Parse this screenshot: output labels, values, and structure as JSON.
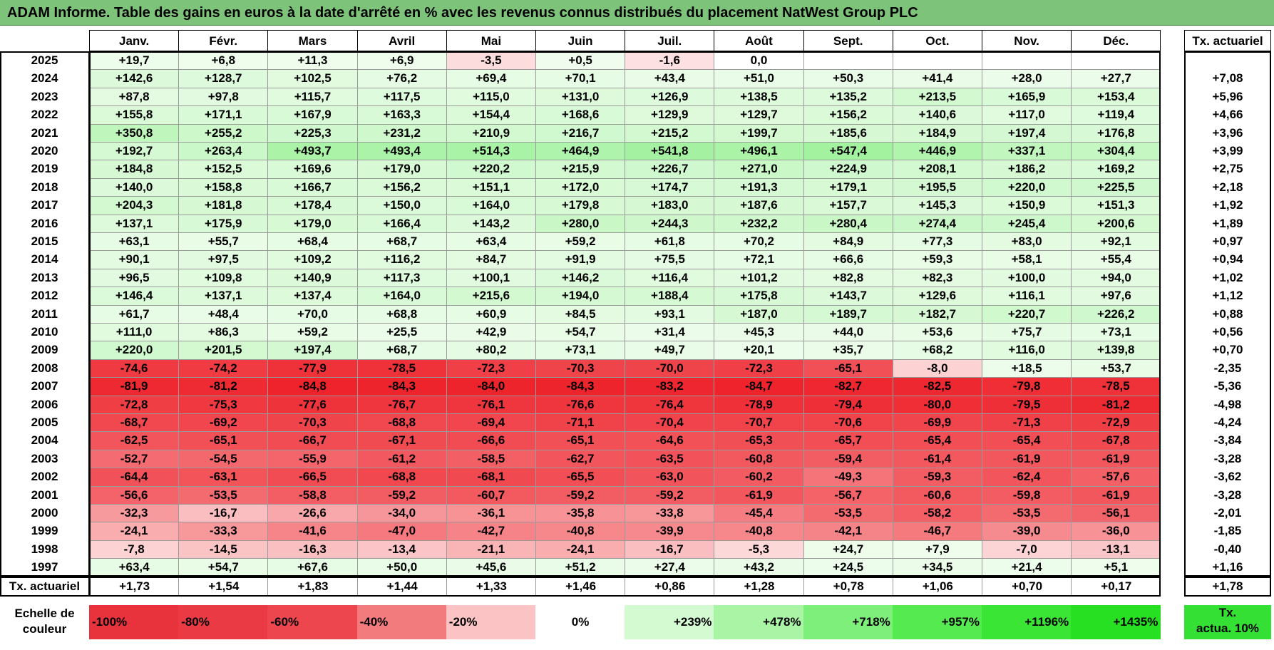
{
  "title": "ADAM Informe. Table des gains en euros à la date d'arrêté en % avec les revenus connus distribués du placement NatWest Group PLC",
  "months": [
    "Janv.",
    "Févr.",
    "Mars",
    "Avril",
    "Mai",
    "Juin",
    "Juil.",
    "Août",
    "Sept.",
    "Oct.",
    "Nov.",
    "Déc."
  ],
  "rate_header": "Tx. actuariel",
  "rows": [
    {
      "year": "2025",
      "values": [
        "+19,7",
        "+6,8",
        "+11,3",
        "+6,9",
        "-3,5",
        "+0,5",
        "-1,6",
        "0,0",
        "",
        "",
        "",
        ""
      ],
      "rate": ""
    },
    {
      "year": "2024",
      "values": [
        "+142,6",
        "+128,7",
        "+102,5",
        "+76,2",
        "+69,4",
        "+70,1",
        "+43,4",
        "+51,0",
        "+50,3",
        "+41,4",
        "+28,0",
        "+27,7"
      ],
      "rate": "+7,08"
    },
    {
      "year": "2023",
      "values": [
        "+87,8",
        "+97,8",
        "+115,7",
        "+117,5",
        "+115,0",
        "+131,0",
        "+126,9",
        "+138,5",
        "+135,2",
        "+213,5",
        "+165,9",
        "+153,4"
      ],
      "rate": "+5,96"
    },
    {
      "year": "2022",
      "values": [
        "+155,8",
        "+171,1",
        "+167,9",
        "+163,3",
        "+154,4",
        "+168,6",
        "+129,9",
        "+129,7",
        "+156,2",
        "+140,6",
        "+117,0",
        "+119,4"
      ],
      "rate": "+4,66"
    },
    {
      "year": "2021",
      "values": [
        "+350,8",
        "+255,2",
        "+225,3",
        "+231,2",
        "+210,9",
        "+216,7",
        "+215,2",
        "+199,7",
        "+185,6",
        "+184,9",
        "+197,4",
        "+176,8"
      ],
      "rate": "+3,96"
    },
    {
      "year": "2020",
      "values": [
        "+192,7",
        "+263,4",
        "+493,7",
        "+493,4",
        "+514,3",
        "+464,9",
        "+541,8",
        "+496,1",
        "+547,4",
        "+446,9",
        "+337,1",
        "+304,4"
      ],
      "rate": "+3,99"
    },
    {
      "year": "2019",
      "values": [
        "+184,8",
        "+152,5",
        "+169,6",
        "+179,0",
        "+220,2",
        "+215,9",
        "+226,7",
        "+271,0",
        "+224,9",
        "+208,1",
        "+186,2",
        "+169,2"
      ],
      "rate": "+2,75"
    },
    {
      "year": "2018",
      "values": [
        "+140,0",
        "+158,8",
        "+166,7",
        "+156,2",
        "+151,1",
        "+172,0",
        "+174,7",
        "+191,3",
        "+179,1",
        "+195,5",
        "+220,0",
        "+225,5"
      ],
      "rate": "+2,18"
    },
    {
      "year": "2017",
      "values": [
        "+204,3",
        "+181,8",
        "+178,4",
        "+150,0",
        "+164,0",
        "+179,8",
        "+183,0",
        "+187,6",
        "+157,7",
        "+145,3",
        "+150,9",
        "+151,3"
      ],
      "rate": "+1,92"
    },
    {
      "year": "2016",
      "values": [
        "+137,1",
        "+175,9",
        "+179,0",
        "+166,4",
        "+143,2",
        "+280,0",
        "+244,3",
        "+232,2",
        "+280,4",
        "+274,4",
        "+245,4",
        "+200,6"
      ],
      "rate": "+1,89"
    },
    {
      "year": "2015",
      "values": [
        "+63,1",
        "+55,7",
        "+68,4",
        "+68,7",
        "+63,4",
        "+59,2",
        "+61,8",
        "+70,2",
        "+84,9",
        "+77,3",
        "+83,0",
        "+92,1"
      ],
      "rate": "+0,97"
    },
    {
      "year": "2014",
      "values": [
        "+90,1",
        "+97,5",
        "+109,2",
        "+116,2",
        "+84,7",
        "+91,9",
        "+75,5",
        "+72,1",
        "+66,6",
        "+59,3",
        "+58,1",
        "+55,4"
      ],
      "rate": "+0,94"
    },
    {
      "year": "2013",
      "values": [
        "+96,5",
        "+109,8",
        "+140,9",
        "+117,3",
        "+100,1",
        "+146,2",
        "+116,4",
        "+101,2",
        "+82,8",
        "+82,3",
        "+100,0",
        "+94,0"
      ],
      "rate": "+1,02"
    },
    {
      "year": "2012",
      "values": [
        "+146,4",
        "+137,1",
        "+137,4",
        "+164,0",
        "+215,6",
        "+194,0",
        "+188,4",
        "+175,8",
        "+143,7",
        "+129,6",
        "+116,1",
        "+97,6"
      ],
      "rate": "+1,12"
    },
    {
      "year": "2011",
      "values": [
        "+61,7",
        "+48,4",
        "+70,0",
        "+68,8",
        "+60,9",
        "+84,5",
        "+93,1",
        "+187,0",
        "+189,7",
        "+182,7",
        "+220,7",
        "+226,2"
      ],
      "rate": "+0,88"
    },
    {
      "year": "2010",
      "values": [
        "+111,0",
        "+86,3",
        "+59,2",
        "+25,5",
        "+42,9",
        "+54,7",
        "+31,4",
        "+45,3",
        "+44,0",
        "+53,6",
        "+75,7",
        "+73,1"
      ],
      "rate": "+0,56"
    },
    {
      "year": "2009",
      "values": [
        "+220,0",
        "+201,5",
        "+197,4",
        "+68,7",
        "+80,2",
        "+73,1",
        "+49,7",
        "+20,1",
        "+35,7",
        "+68,2",
        "+116,0",
        "+139,8"
      ],
      "rate": "+0,70"
    },
    {
      "year": "2008",
      "values": [
        "-74,6",
        "-74,2",
        "-77,9",
        "-78,5",
        "-72,3",
        "-70,3",
        "-70,0",
        "-72,3",
        "-65,1",
        "-8,0",
        "+18,5",
        "+53,7"
      ],
      "rate": "-2,35"
    },
    {
      "year": "2007",
      "values": [
        "-81,9",
        "-81,2",
        "-84,8",
        "-84,3",
        "-84,0",
        "-84,3",
        "-83,2",
        "-84,7",
        "-82,7",
        "-82,5",
        "-79,8",
        "-78,5"
      ],
      "rate": "-5,36"
    },
    {
      "year": "2006",
      "values": [
        "-72,8",
        "-75,3",
        "-77,6",
        "-76,7",
        "-76,1",
        "-76,6",
        "-76,4",
        "-78,9",
        "-79,4",
        "-80,0",
        "-79,5",
        "-81,2"
      ],
      "rate": "-4,98"
    },
    {
      "year": "2005",
      "values": [
        "-68,7",
        "-69,2",
        "-70,3",
        "-68,8",
        "-69,4",
        "-71,1",
        "-70,4",
        "-70,7",
        "-70,6",
        "-69,9",
        "-71,3",
        "-72,9"
      ],
      "rate": "-4,24"
    },
    {
      "year": "2004",
      "values": [
        "-62,5",
        "-65,1",
        "-66,7",
        "-67,1",
        "-66,6",
        "-65,1",
        "-64,6",
        "-65,3",
        "-65,7",
        "-65,4",
        "-65,4",
        "-67,8"
      ],
      "rate": "-3,84"
    },
    {
      "year": "2003",
      "values": [
        "-52,7",
        "-54,5",
        "-55,9",
        "-61,2",
        "-58,5",
        "-62,7",
        "-63,5",
        "-60,8",
        "-59,4",
        "-61,4",
        "-61,9",
        "-61,9"
      ],
      "rate": "-3,28"
    },
    {
      "year": "2002",
      "values": [
        "-64,4",
        "-63,1",
        "-66,5",
        "-68,8",
        "-68,1",
        "-65,5",
        "-63,0",
        "-60,2",
        "-49,3",
        "-59,3",
        "-62,4",
        "-57,6"
      ],
      "rate": "-3,62"
    },
    {
      "year": "2001",
      "values": [
        "-56,6",
        "-53,5",
        "-58,8",
        "-59,2",
        "-60,7",
        "-59,2",
        "-59,2",
        "-61,9",
        "-56,7",
        "-60,6",
        "-59,8",
        "-61,9"
      ],
      "rate": "-3,28"
    },
    {
      "year": "2000",
      "values": [
        "-32,3",
        "-16,7",
        "-26,6",
        "-34,0",
        "-36,1",
        "-35,8",
        "-33,8",
        "-45,4",
        "-53,5",
        "-58,2",
        "-53,5",
        "-56,1"
      ],
      "rate": "-2,01"
    },
    {
      "year": "1999",
      "values": [
        "-24,1",
        "-33,3",
        "-41,6",
        "-47,0",
        "-42,7",
        "-40,8",
        "-39,9",
        "-40,8",
        "-42,1",
        "-46,7",
        "-39,0",
        "-36,0"
      ],
      "rate": "-1,85"
    },
    {
      "year": "1998",
      "values": [
        "-7,8",
        "-14,5",
        "-16,3",
        "-13,4",
        "-21,1",
        "-24,1",
        "-16,7",
        "-5,3",
        "+24,7",
        "+7,9",
        "-7,0",
        "-13,1"
      ],
      "rate": "-0,40"
    },
    {
      "year": "1997",
      "values": [
        "+63,4",
        "+54,7",
        "+67,6",
        "+50,0",
        "+45,6",
        "+51,2",
        "+27,4",
        "+43,2",
        "+24,5",
        "+34,5",
        "+21,4",
        "+5,1"
      ],
      "rate": "+1,16"
    }
  ],
  "footer": {
    "label": "Tx. actuariel",
    "values": [
      "+1,73",
      "+1,54",
      "+1,83",
      "+1,44",
      "+1,33",
      "+1,46",
      "+0,86",
      "+1,28",
      "+0,78",
      "+1,06",
      "+0,70",
      "+0,17"
    ],
    "rate": "+1,78"
  },
  "scale": {
    "label_line1": "Echelle de",
    "label_line2": "couleur",
    "items": [
      {
        "text": "-100%",
        "color": "#e8323c"
      },
      {
        "text": "-80%",
        "color": "#ea3a43"
      },
      {
        "text": "-60%",
        "color": "#ed464e"
      },
      {
        "text": "-40%",
        "color": "#f27b7e"
      },
      {
        "text": "-20%",
        "color": "#fbc3c3"
      },
      {
        "text": "0%",
        "color": "#ffffff"
      },
      {
        "text": "+239%",
        "color": "#d4fad2"
      },
      {
        "text": "+478%",
        "color": "#a9f5a5"
      },
      {
        "text": "+718%",
        "color": "#7eef7a"
      },
      {
        "text": "+957%",
        "color": "#55ea50"
      },
      {
        "text": "+1196%",
        "color": "#3ae535"
      },
      {
        "text": "+1435%",
        "color": "#26e021"
      }
    ],
    "rate_line1": "Tx.",
    "rate_line2": "actua. 10%",
    "rate_color": "#35e035"
  }
}
